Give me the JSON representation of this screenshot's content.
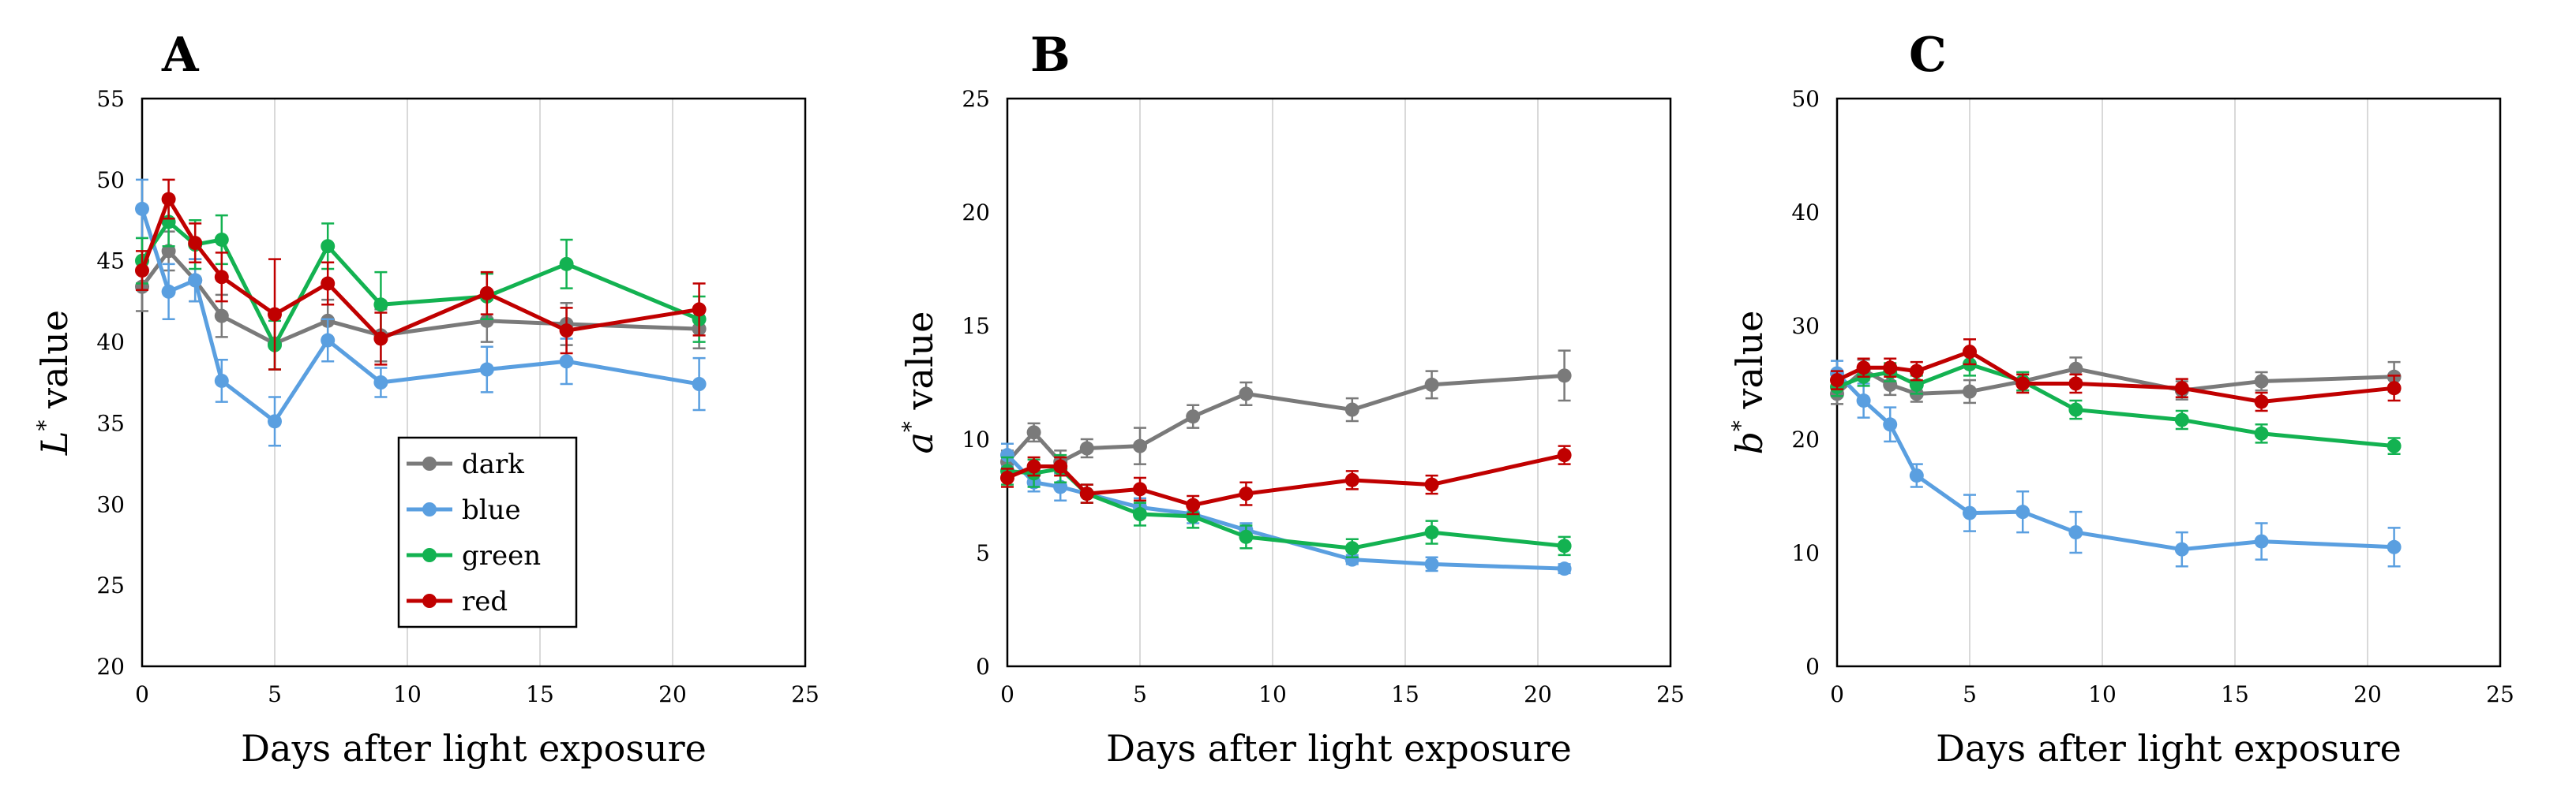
{
  "colors": {
    "dark": "#7a7a7a",
    "blue": "#5a9fe0",
    "green": "#13b251",
    "red": "#c00000",
    "grid": "#d9d9d9",
    "axis": "#000000"
  },
  "x_axis_label": "Days after light exposure",
  "legend": {
    "entries": [
      "dark",
      "blue",
      "green",
      "red"
    ]
  },
  "chart_data": [
    {
      "type": "line",
      "panel_label": "A",
      "ylabel_symbol": "L",
      "ylabel_sup": "*",
      "ylabel_rest": " value",
      "xlabel": "Days after light exposure",
      "xlim": [
        0,
        25
      ],
      "xticks": [
        0,
        5,
        10,
        15,
        20,
        25
      ],
      "ylim": [
        20,
        55
      ],
      "yticks": [
        20,
        25,
        30,
        35,
        40,
        45,
        50,
        55
      ],
      "x": [
        0,
        1,
        2,
        3,
        5,
        7,
        9,
        13,
        16,
        21
      ],
      "series": [
        {
          "name": "dark",
          "values": [
            43.4,
            45.6,
            43.8,
            41.6,
            39.9,
            41.3,
            40.4,
            41.3,
            41.1,
            40.8
          ],
          "errors": [
            1.5,
            1.2,
            1.3,
            1.3,
            1.6,
            1.3,
            1.6,
            1.3,
            1.3,
            1.2
          ]
        },
        {
          "name": "blue",
          "values": [
            48.2,
            43.1,
            43.8,
            37.6,
            35.1,
            40.1,
            37.5,
            38.3,
            38.8,
            37.4
          ],
          "errors": [
            1.8,
            1.7,
            1.3,
            1.3,
            1.5,
            1.3,
            0.9,
            1.4,
            1.4,
            1.6
          ]
        },
        {
          "name": "green",
          "values": [
            45.0,
            47.4,
            46.0,
            46.3,
            39.8,
            45.9,
            42.3,
            42.8,
            44.8,
            41.4
          ],
          "errors": [
            1.4,
            1.5,
            1.5,
            1.5,
            1.5,
            1.4,
            2.0,
            1.4,
            1.5,
            1.4
          ]
        },
        {
          "name": "red",
          "values": [
            44.4,
            48.8,
            46.1,
            44.0,
            41.7,
            43.6,
            40.2,
            43.0,
            40.7,
            42.0
          ],
          "errors": [
            1.2,
            1.2,
            1.2,
            1.5,
            3.4,
            1.3,
            1.6,
            1.3,
            1.4,
            1.6
          ]
        }
      ]
    },
    {
      "type": "line",
      "panel_label": "B",
      "ylabel_symbol": "a",
      "ylabel_sup": "*",
      "ylabel_rest": " value",
      "xlabel": "Days after light exposure",
      "xlim": [
        0,
        25
      ],
      "xticks": [
        0,
        5,
        10,
        15,
        20,
        25
      ],
      "ylim": [
        0,
        25
      ],
      "yticks": [
        0,
        5,
        10,
        15,
        20,
        25
      ],
      "x": [
        0,
        1,
        2,
        3,
        5,
        7,
        9,
        13,
        16,
        21
      ],
      "series": [
        {
          "name": "dark",
          "values": [
            9.0,
            10.3,
            9.0,
            9.6,
            9.7,
            11.0,
            12.0,
            11.3,
            12.4,
            12.8
          ],
          "errors": [
            0.5,
            0.4,
            0.5,
            0.4,
            0.8,
            0.5,
            0.5,
            0.5,
            0.6,
            1.1
          ]
        },
        {
          "name": "blue",
          "values": [
            9.3,
            8.1,
            7.9,
            7.6,
            7.0,
            6.7,
            6.0,
            4.7,
            4.5,
            4.3
          ],
          "errors": [
            0.5,
            0.4,
            0.6,
            0.4,
            0.4,
            0.4,
            0.3,
            0.2,
            0.3,
            0.2
          ]
        },
        {
          "name": "green",
          "values": [
            8.6,
            8.5,
            8.7,
            7.6,
            6.7,
            6.6,
            5.7,
            5.2,
            5.9,
            5.3
          ],
          "errors": [
            0.6,
            0.6,
            0.6,
            0.4,
            0.5,
            0.5,
            0.5,
            0.4,
            0.5,
            0.4
          ]
        },
        {
          "name": "red",
          "values": [
            8.3,
            8.8,
            8.8,
            7.6,
            7.8,
            7.1,
            7.6,
            8.2,
            8.0,
            9.3
          ],
          "errors": [
            0.4,
            0.4,
            0.4,
            0.4,
            0.5,
            0.4,
            0.5,
            0.4,
            0.4,
            0.4
          ]
        }
      ]
    },
    {
      "type": "line",
      "panel_label": "C",
      "ylabel_symbol": "b",
      "ylabel_sup": "*",
      "ylabel_rest": " value",
      "xlabel": "Days after light exposure",
      "xlim": [
        0,
        25
      ],
      "xticks": [
        0,
        5,
        10,
        15,
        20,
        25
      ],
      "ylim": [
        0,
        50
      ],
      "yticks": [
        0,
        10,
        20,
        30,
        40,
        50
      ],
      "x": [
        0,
        1,
        2,
        3,
        5,
        7,
        9,
        13,
        16,
        21
      ],
      "series": [
        {
          "name": "dark",
          "values": [
            24.0,
            26.1,
            24.8,
            24.0,
            24.2,
            25.1,
            26.2,
            24.3,
            25.1,
            25.5
          ],
          "errors": [
            0.9,
            0.9,
            0.9,
            0.7,
            1.0,
            0.8,
            1.0,
            0.8,
            0.8,
            1.3
          ]
        },
        {
          "name": "blue",
          "values": [
            25.8,
            23.4,
            21.3,
            16.8,
            13.5,
            13.6,
            11.8,
            10.3,
            11.0,
            10.5
          ],
          "errors": [
            1.1,
            1.5,
            1.5,
            1.0,
            1.6,
            1.8,
            1.8,
            1.5,
            1.6,
            1.7
          ]
        },
        {
          "name": "green",
          "values": [
            24.6,
            25.5,
            25.9,
            24.8,
            26.6,
            25.1,
            22.6,
            21.7,
            20.5,
            19.4
          ],
          "errors": [
            0.8,
            0.8,
            0.8,
            0.8,
            1.0,
            0.8,
            0.8,
            0.8,
            0.8,
            0.7
          ]
        },
        {
          "name": "red",
          "values": [
            25.2,
            26.3,
            26.3,
            26.0,
            27.7,
            24.9,
            24.9,
            24.5,
            23.3,
            24.5
          ],
          "errors": [
            0.8,
            0.8,
            0.8,
            0.8,
            1.1,
            0.8,
            0.8,
            0.8,
            0.8,
            1.1
          ]
        }
      ]
    }
  ]
}
